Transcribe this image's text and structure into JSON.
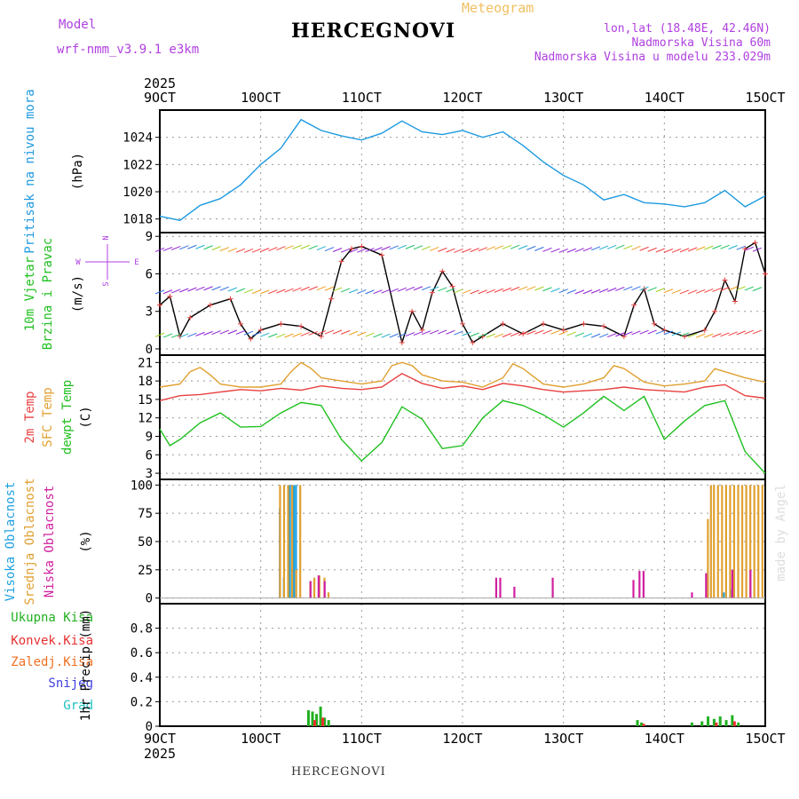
{
  "header": {
    "model_label": "Model",
    "model_name": "wrf-nmm_v3.9.1 e3km",
    "title": "HERCEGNOVI",
    "meteogram": "Meteogram",
    "lonlat": "lon,lat (18.48E, 42.46N)",
    "altitude": "Nadmorska Visina 60m",
    "model_altitude": "Nadmorska Visina u modelu 233.029m",
    "footer": "HERCEGNOVI",
    "credit": "made by Angel"
  },
  "colors": {
    "pressure": "#1e9ae0",
    "wind_label": "#20c020",
    "temp2m": "#e84040",
    "sfc": "#e0a030",
    "dewpt": "#20c020",
    "cloud_high": "#20a0e0",
    "cloud_mid": "#e0a030",
    "cloud_low": "#d020a0",
    "precip_total": "#20b020",
    "precip_conv": "#e83030",
    "precip_frz": "#f07020",
    "precip_snow": "#4040e0",
    "precip_hail": "#20c0c0",
    "compass": "#b040e0"
  },
  "chart_data": {
    "type": "line",
    "x_axis": {
      "top_year": "2025",
      "bottom_year": "2025",
      "ticks": [
        "9OCT",
        "10OCT",
        "11OCT",
        "12OCT",
        "13OCT",
        "14OCT",
        "15OCT"
      ],
      "range_days": [
        9,
        15
      ]
    },
    "panels": [
      {
        "id": "pressure",
        "labels": [
          "Pritisak na nivou mora"
        ],
        "unit": "(hPa)",
        "ylim": [
          1017,
          1026
        ],
        "yticks": [
          1018,
          1020,
          1022,
          1024
        ],
        "series": [
          {
            "name": "Pritisak na nivou mora",
            "color": "#1e9ae0",
            "x": [
              9.0,
              9.2,
              9.4,
              9.6,
              9.8,
              10.0,
              10.2,
              10.4,
              10.6,
              10.8,
              11.0,
              11.2,
              11.4,
              11.6,
              11.8,
              12.0,
              12.2,
              12.4,
              12.6,
              12.8,
              13.0,
              13.2,
              13.4,
              13.6,
              13.8,
              14.0,
              14.2,
              14.4,
              14.6,
              14.8,
              15.0
            ],
            "y": [
              1018.2,
              1017.9,
              1019.0,
              1019.5,
              1020.5,
              1022.0,
              1023.2,
              1025.3,
              1024.5,
              1024.1,
              1023.8,
              1024.3,
              1025.2,
              1024.4,
              1024.2,
              1024.5,
              1024.0,
              1024.4,
              1023.4,
              1022.2,
              1021.2,
              1020.5,
              1019.4,
              1019.8,
              1019.2,
              1019.1,
              1018.9,
              1019.2,
              1020.1,
              1018.9,
              1019.7
            ]
          }
        ]
      },
      {
        "id": "wind",
        "labels": [
          "10m Vjetar",
          "Brzina i Pravac"
        ],
        "unit": "(m/s)",
        "ylim": [
          -0.5,
          9.3
        ],
        "yticks": [
          0,
          3,
          6,
          9
        ],
        "compass": {
          "n": "N",
          "s": "S",
          "w": "W",
          "e": "E"
        },
        "series": [
          {
            "name": "Brzina",
            "color": "#000000",
            "x": [
              9.0,
              9.1,
              9.2,
              9.3,
              9.5,
              9.7,
              9.8,
              9.9,
              10.0,
              10.2,
              10.4,
              10.6,
              10.7,
              10.8,
              10.9,
              11.0,
              11.2,
              11.4,
              11.5,
              11.6,
              11.7,
              11.8,
              11.9,
              12.0,
              12.1,
              12.2,
              12.4,
              12.6,
              12.8,
              13.0,
              13.2,
              13.4,
              13.6,
              13.7,
              13.8,
              13.9,
              14.0,
              14.2,
              14.4,
              14.5,
              14.6,
              14.7,
              14.8,
              14.9,
              15.0
            ],
            "y": [
              3.5,
              4.2,
              1.0,
              2.5,
              3.5,
              4.0,
              2.0,
              0.8,
              1.5,
              2.0,
              1.8,
              1.0,
              4.0,
              7.0,
              8.0,
              8.2,
              7.5,
              0.5,
              3.0,
              1.5,
              4.5,
              6.2,
              5.0,
              2.0,
              0.5,
              1.0,
              2.0,
              1.2,
              2.0,
              1.5,
              2.0,
              1.8,
              1.0,
              3.5,
              4.8,
              2.0,
              1.5,
              1.0,
              1.5,
              3.0,
              5.5,
              3.8,
              8.0,
              8.5,
              6.0
            ]
          }
        ]
      },
      {
        "id": "temperature",
        "labels": [
          "2m Temp",
          "SFC Temp",
          "dewpt Temp"
        ],
        "unit": "(C)",
        "ylim": [
          2,
          22.2
        ],
        "yticks": [
          3,
          6,
          9,
          12,
          15,
          18,
          21
        ],
        "series": [
          {
            "name": "2m Temp",
            "color": "#e84040",
            "x": [
              9.0,
              9.2,
              9.4,
              9.6,
              9.8,
              10.0,
              10.2,
              10.4,
              10.6,
              10.8,
              11.0,
              11.2,
              11.4,
              11.6,
              11.8,
              12.0,
              12.2,
              12.4,
              12.6,
              12.8,
              13.0,
              13.2,
              13.4,
              13.6,
              13.8,
              14.0,
              14.2,
              14.4,
              14.6,
              14.8,
              15.0
            ],
            "y": [
              14.8,
              15.6,
              15.8,
              16.2,
              16.6,
              16.4,
              16.8,
              16.5,
              17.2,
              16.8,
              16.6,
              17.0,
              19.2,
              17.6,
              16.8,
              17.2,
              16.6,
              17.6,
              17.2,
              16.6,
              16.2,
              16.4,
              16.6,
              17.0,
              16.6,
              16.4,
              16.2,
              17.0,
              17.4,
              15.6,
              15.2
            ]
          },
          {
            "name": "SFC Temp",
            "color": "#e0a030",
            "x": [
              9.0,
              9.2,
              9.3,
              9.4,
              9.5,
              9.6,
              9.8,
              10.0,
              10.2,
              10.3,
              10.4,
              10.5,
              10.6,
              10.8,
              11.0,
              11.2,
              11.3,
              11.4,
              11.5,
              11.6,
              11.8,
              12.0,
              12.2,
              12.4,
              12.5,
              12.6,
              12.8,
              13.0,
              13.2,
              13.4,
              13.5,
              13.6,
              13.8,
              14.0,
              14.2,
              14.4,
              14.5,
              14.6,
              14.8,
              15.0
            ],
            "y": [
              17.0,
              17.5,
              19.5,
              20.2,
              19.0,
              17.5,
              17.0,
              17.0,
              17.5,
              19.5,
              21.0,
              20.0,
              18.5,
              18.0,
              17.5,
              18.0,
              20.5,
              21.0,
              20.5,
              19.0,
              18.0,
              17.8,
              17.0,
              18.5,
              20.8,
              20.0,
              17.5,
              17.0,
              17.5,
              18.5,
              20.5,
              20.0,
              17.8,
              17.2,
              17.5,
              18.0,
              20.0,
              19.5,
              18.5,
              17.8
            ]
          },
          {
            "name": "dewpt Temp",
            "color": "#20c020",
            "x": [
              9.0,
              9.1,
              9.2,
              9.4,
              9.6,
              9.8,
              10.0,
              10.2,
              10.4,
              10.6,
              10.8,
              11.0,
              11.2,
              11.4,
              11.6,
              11.8,
              12.0,
              12.2,
              12.4,
              12.6,
              12.8,
              13.0,
              13.2,
              13.4,
              13.6,
              13.8,
              14.0,
              14.2,
              14.4,
              14.6,
              14.8,
              15.0
            ],
            "y": [
              10.2,
              7.5,
              8.5,
              11.2,
              12.8,
              10.5,
              10.6,
              12.8,
              14.5,
              14.0,
              8.5,
              5.0,
              8.0,
              13.8,
              11.8,
              7.0,
              7.5,
              12.0,
              14.8,
              14.0,
              12.5,
              10.5,
              12.8,
              15.5,
              13.2,
              15.5,
              8.5,
              11.5,
              14.0,
              14.8,
              6.5,
              3.0
            ]
          }
        ]
      },
      {
        "id": "clouds",
        "labels": [
          "Visoka Oblacnost",
          "Srednja Oblacnost",
          "Niska Oblacnost"
        ],
        "unit": "(%)",
        "ylim": [
          -5,
          105
        ],
        "yticks": [
          0,
          25,
          50,
          75,
          100
        ],
        "series": [
          {
            "name": "Visoka Oblacnost",
            "color": "#20a0e0",
            "x": [
              10.18,
              10.22,
              10.28,
              10.32,
              10.34,
              14.58,
              14.66
            ],
            "y": [
              80,
              18,
              100,
              100,
              100,
              5,
              8
            ]
          },
          {
            "name": "Srednja Oblacnost",
            "color": "#e0a030",
            "x": [
              10.16,
              10.2,
              10.24,
              10.28,
              10.32,
              10.36,
              10.46,
              10.5,
              10.55,
              10.6,
              10.64,
              14.4,
              14.43,
              14.46,
              14.5,
              14.54,
              14.58,
              14.62,
              14.66,
              14.7,
              14.74,
              14.78,
              14.82,
              14.86,
              14.9,
              14.94
            ],
            "y": [
              100,
              100,
              100,
              100,
              25,
              100,
              15,
              18,
              20,
              18,
              5,
              70,
              100,
              100,
              100,
              100,
              100,
              100,
              100,
              100,
              100,
              100,
              100,
              100,
              100,
              100
            ]
          },
          {
            "name": "Niska Oblacnost",
            "color": "#d020a0",
            "x": [
              10.44,
              10.52,
              10.58,
              12.28,
              12.32,
              12.46,
              12.84,
              13.64,
              13.7,
              13.74,
              14.22,
              14.36,
              14.62,
              14.8
            ],
            "y": [
              15,
              20,
              15,
              18,
              18,
              10,
              18,
              16,
              24,
              24,
              5,
              22,
              25,
              25
            ]
          }
        ]
      },
      {
        "id": "precip",
        "labels": [
          "Ukupna Kisa",
          "Konvek.Kisa",
          "Zaledj.Kisa",
          "Snijeg",
          "Grad"
        ],
        "unit": "1hr Precip (mm)",
        "ylim": [
          0,
          1.0
        ],
        "yticks": [
          0,
          0.2,
          0.4,
          0.6,
          0.8
        ],
        "series": [
          {
            "name": "Ukupna Kisa",
            "color": "#20b020",
            "x": [
              10.46,
              10.5,
              10.54,
              10.58,
              10.62,
              10.66,
              13.72,
              13.76,
              14.26,
              14.36,
              14.42,
              14.48,
              14.54,
              14.6,
              14.66,
              14.72
            ],
            "y": [
              0.13,
              0.12,
              0.1,
              0.16,
              0.07,
              0.05,
              0.05,
              0.03,
              0.03,
              0.04,
              0.08,
              0.06,
              0.08,
              0.05,
              0.09,
              0.03
            ]
          },
          {
            "name": "Konvek.Kisa",
            "color": "#e83030",
            "x": [
              10.5,
              10.58,
              13.76,
              14.48,
              14.66
            ],
            "y": [
              0.05,
              0.07,
              0.02,
              0.03,
              0.04
            ]
          }
        ]
      }
    ]
  }
}
